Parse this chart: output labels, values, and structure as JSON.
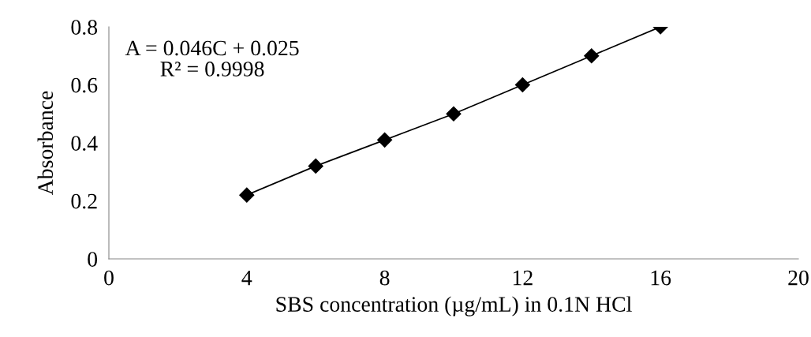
{
  "chart_data": {
    "type": "line",
    "xlabel": "SBS concentration (µg/mL) in 0.1N HCl",
    "ylabel": "Absorbance",
    "x": [
      4,
      6,
      8,
      10,
      12,
      14,
      16
    ],
    "series": [
      {
        "color": "#000000",
        "values": [
          0.22,
          0.32,
          0.41,
          0.5,
          0.6,
          0.7,
          0.8
        ]
      }
    ],
    "marker": "diamond",
    "line_style": "solid",
    "xlim": [
      0,
      20
    ],
    "xticks": [
      0,
      4,
      8,
      12,
      16,
      20
    ],
    "ylim": [
      0,
      0.8
    ],
    "yticks": [
      0,
      0.2,
      0.4,
      0.6,
      0.8
    ],
    "annotations": [
      "A = 0.046C + 0.025",
      "R² = 0.9998"
    ]
  }
}
